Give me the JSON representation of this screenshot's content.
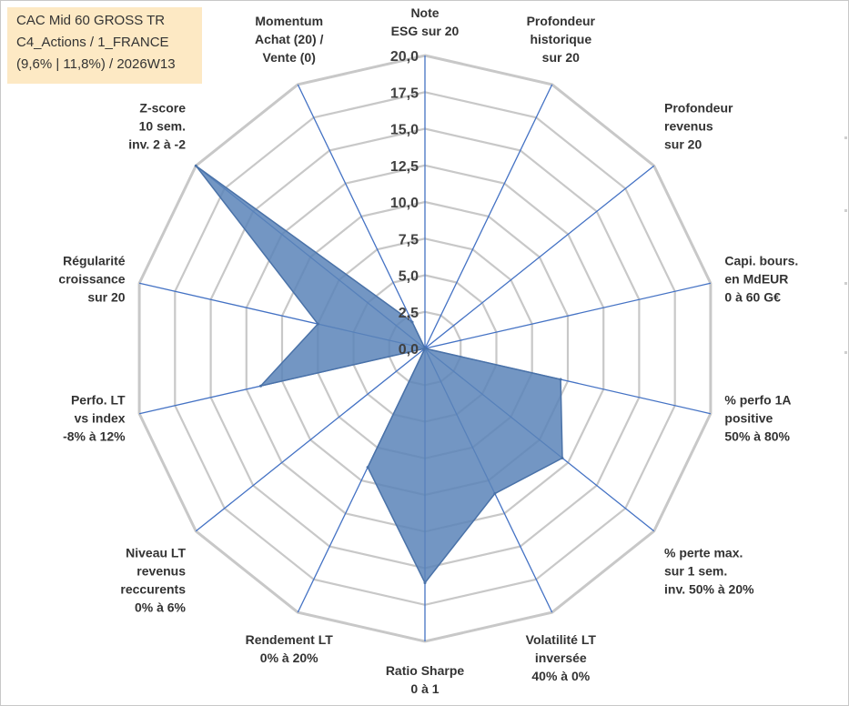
{
  "title_box": {
    "line1": "CAC Mid 60 GROSS TR",
    "line2": "C4_Actions / 1_FRANCE",
    "line3": "(9,6% | 11,8%) / 2026W13"
  },
  "colors": {
    "grid": "#c8c8c8",
    "spoke": "#4472c4",
    "fill": "#5b84b8",
    "stroke": "#4a72a8",
    "tick_text": "#404040",
    "label_text": "#333333",
    "title_bg": "#fde9c4"
  },
  "chart_data": {
    "type": "radar",
    "title": "CAC Mid 60 GROSS TR",
    "r_min": 0,
    "r_max": 20,
    "r_step": 2.5,
    "ticks": [
      "0,0",
      "2,5",
      "5,0",
      "7,5",
      "10,0",
      "12,5",
      "15,0",
      "17,5",
      "20,0"
    ],
    "grid": true,
    "categories": [
      [
        "Note",
        "ESG sur 20"
      ],
      [
        "Profondeur",
        "historique",
        "sur 20"
      ],
      [
        "Profondeur",
        "revenus",
        "sur 20"
      ],
      [
        "Capi. bours.",
        "en MdEUR",
        "0 à 60 G€"
      ],
      [
        "% perfo 1A",
        "positive",
        "50% à 80%"
      ],
      [
        "% perte max.",
        "sur 1 sem.",
        "inv. 50% à 20%"
      ],
      [
        "Volatilité LT",
        "inversée",
        "40% à 0%"
      ],
      [
        "Ratio Sharpe",
        "0 à 1"
      ],
      [
        "Rendement LT",
        "0% à 20%"
      ],
      [
        "Niveau LT",
        "revenus",
        "reccurents",
        "0% à 6%"
      ],
      [
        "Perfo. LT",
        "vs index",
        "-8% à 12%"
      ],
      [
        "Régularité",
        "croissance",
        "sur 20"
      ],
      [
        "Z-score",
        "10 sem.",
        "inv. 2 à -2"
      ],
      [
        "Momentum",
        "Achat (20) /",
        "Vente (0)"
      ]
    ],
    "series": [
      {
        "name": "CAC Mid 60 GROSS TR",
        "values": [
          0,
          0,
          0,
          0,
          9.5,
          12,
          11,
          16,
          9,
          0,
          11.5,
          7.5,
          20,
          2
        ]
      }
    ]
  }
}
